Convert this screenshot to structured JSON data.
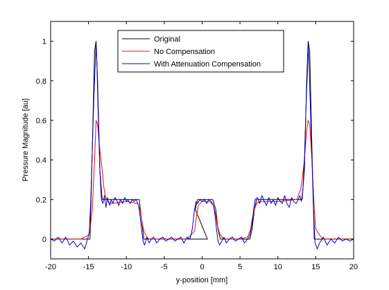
{
  "chart_data": {
    "type": "line",
    "title": "",
    "xlabel": "y-position [mm]",
    "ylabel": "Pressure Magnitude [au]",
    "xlim": [
      -20,
      20
    ],
    "ylim": [
      -0.1,
      1.1
    ],
    "xticks": [
      -20,
      -15,
      -10,
      -5,
      0,
      5,
      10,
      15,
      20
    ],
    "xtick_labels": [
      "-20",
      "-15",
      "-10",
      "-5",
      "0",
      "5",
      "10",
      "15",
      "20"
    ],
    "yticks": [
      0,
      0.2,
      0.4,
      0.6,
      0.8,
      1.0
    ],
    "ytick_labels": [
      "0",
      "0.2",
      "0.4",
      "0.6",
      "0.8",
      "1"
    ],
    "grid": false,
    "legend_position": "top-center",
    "series": [
      {
        "name": "Original",
        "color": "#000000",
        "x": [
          -20,
          -14.8,
          -14.5,
          -14.2,
          -14.0,
          -13.8,
          -13.5,
          -13.2,
          -8.3,
          -8.0,
          -7.7,
          0.7,
          -0.9,
          -0.6,
          -0.3,
          0.3,
          1.4,
          1.8,
          2.1,
          2.4,
          6.3,
          6.6,
          6.9,
          7.2,
          13.2,
          13.5,
          13.8,
          14.0,
          14.2,
          14.5,
          14.8,
          20
        ],
        "y": [
          0,
          0,
          0.45,
          0.95,
          1.0,
          0.8,
          0.35,
          0.2,
          0.2,
          0.1,
          0,
          0,
          0.15,
          0.2,
          0.2,
          0.2,
          0.2,
          0.15,
          0.05,
          0,
          0,
          0.05,
          0.15,
          0.2,
          0.2,
          0.35,
          0.8,
          1.0,
          0.95,
          0.45,
          0,
          0
        ]
      },
      {
        "name": "No Compensation",
        "color": "#ff0000",
        "x": [
          -20,
          -16,
          -15,
          -14.8,
          -14.5,
          -14.2,
          -14.0,
          -13.8,
          -13.5,
          -13.2,
          -13.0,
          -12.8,
          -12.5,
          -12.0,
          -10,
          -8.5,
          -8.2,
          -8.0,
          -7.7,
          -7.3,
          -7.0,
          -5,
          -2,
          -1.0,
          -0.8,
          -0.5,
          0,
          0.5,
          1.0,
          1.5,
          1.8,
          2.0,
          2.3,
          2.6,
          3,
          5,
          6.0,
          6.4,
          6.6,
          6.9,
          7.2,
          7.6,
          10,
          12.5,
          13.0,
          13.2,
          13.5,
          13.8,
          14.0,
          14.2,
          14.5,
          14.8,
          15.0,
          15.5,
          16,
          20
        ],
        "y": [
          0,
          0,
          0.02,
          0.05,
          0.15,
          0.4,
          0.6,
          0.58,
          0.45,
          0.35,
          0.27,
          0.22,
          0.19,
          0.18,
          0.19,
          0.18,
          0.15,
          0.1,
          0.04,
          0.01,
          0,
          0,
          0,
          0.04,
          0.1,
          0.17,
          0.19,
          0.19,
          0.19,
          0.17,
          0.12,
          0.07,
          0.03,
          0.01,
          0,
          0,
          0.01,
          0.05,
          0.1,
          0.15,
          0.18,
          0.19,
          0.19,
          0.2,
          0.25,
          0.3,
          0.4,
          0.55,
          0.6,
          0.58,
          0.4,
          0.15,
          0.05,
          0.02,
          0,
          0
        ]
      },
      {
        "name": "With Attenuation Compensation",
        "color": "#0000cc",
        "x": [
          -20,
          -19.5,
          -19,
          -18.5,
          -18,
          -17.5,
          -17,
          -16.5,
          -16,
          -15.5,
          -15.2,
          -14.9,
          -14.7,
          -14.5,
          -14.3,
          -14.1,
          -14.0,
          -13.9,
          -13.7,
          -13.5,
          -13.3,
          -13.1,
          -12.9,
          -12.7,
          -12.5,
          -12.2,
          -12.0,
          -11.8,
          -11.5,
          -11.2,
          -11.0,
          -10.8,
          -10.5,
          -10.2,
          -10.0,
          -9.8,
          -9.5,
          -9.2,
          -9.0,
          -8.7,
          -8.4,
          -8.2,
          -8.0,
          -7.8,
          -7.6,
          -7.3,
          -7.0,
          -6.7,
          -6.4,
          -6.0,
          -5.6,
          -5.2,
          -4.8,
          -4.4,
          -4.0,
          -3.6,
          -3.2,
          -2.8,
          -2.4,
          -2.0,
          -1.6,
          -1.3,
          -1.0,
          -0.8,
          -0.6,
          -0.3,
          0,
          0.3,
          0.6,
          0.9,
          1.2,
          1.5,
          1.7,
          1.9,
          2.1,
          2.3,
          2.6,
          2.9,
          3.2,
          3.6,
          4.0,
          4.4,
          4.8,
          5.2,
          5.6,
          6.0,
          6.3,
          6.6,
          6.8,
          7.0,
          7.3,
          7.6,
          7.9,
          8.2,
          8.5,
          8.8,
          9.1,
          9.4,
          9.7,
          10.0,
          10.3,
          10.6,
          10.9,
          11.2,
          11.5,
          11.8,
          12.1,
          12.4,
          12.7,
          12.9,
          13.1,
          13.3,
          13.5,
          13.7,
          13.9,
          14.0,
          14.1,
          14.3,
          14.5,
          14.7,
          14.9,
          15.2,
          15.5,
          16.0,
          16.5,
          17.0,
          17.5,
          18.0,
          18.5,
          19.0,
          19.5,
          20
        ],
        "y": [
          0,
          -0.01,
          0.01,
          -0.02,
          0.01,
          -0.03,
          -0.01,
          -0.04,
          -0.02,
          -0.05,
          -0.01,
          0.03,
          0.2,
          0.45,
          0.7,
          0.9,
          0.98,
          0.9,
          0.6,
          0.35,
          0.2,
          0.18,
          0.22,
          0.16,
          0.21,
          0.17,
          0.2,
          0.18,
          0.21,
          0.19,
          0.17,
          0.2,
          0.18,
          0.21,
          0.19,
          0.2,
          0.18,
          0.2,
          0.19,
          0.2,
          0.17,
          0.12,
          0.05,
          -0.01,
          -0.03,
          0.01,
          -0.02,
          0,
          0.01,
          -0.02,
          0,
          0.01,
          -0.01,
          0,
          0.01,
          -0.01,
          0,
          0.01,
          -0.02,
          0.01,
          0,
          0.05,
          0.15,
          0.19,
          0.18,
          0.2,
          0.19,
          0.2,
          0.18,
          0.2,
          0.19,
          0.17,
          0.12,
          0.05,
          -0.01,
          -0.03,
          -0.01,
          0.01,
          -0.02,
          0,
          0.01,
          -0.01,
          0,
          0.01,
          -0.02,
          0,
          0.02,
          0.08,
          0.15,
          0.2,
          0.21,
          0.18,
          0.22,
          0.19,
          0.17,
          0.21,
          0.18,
          0.2,
          0.17,
          0.21,
          0.19,
          0.18,
          0.22,
          0.18,
          0.16,
          0.21,
          0.19,
          0.18,
          0.2,
          0.22,
          0.19,
          0.25,
          0.4,
          0.65,
          0.85,
          0.98,
          0.9,
          0.65,
          0.4,
          0.15,
          -0.02,
          -0.05,
          -0.02,
          0.01,
          -0.03,
          0,
          -0.02,
          0.01,
          -0.01,
          0,
          -0.01,
          0
        ]
      }
    ]
  }
}
